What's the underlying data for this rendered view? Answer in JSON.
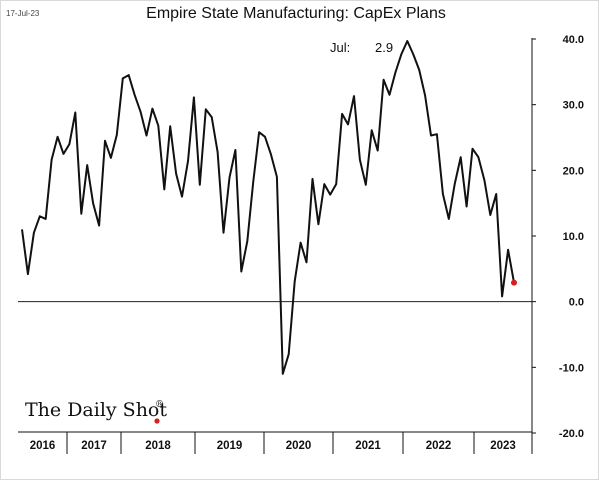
{
  "header": {
    "date": "17-Jul-23",
    "title": "Empire State Manufacturing: CapEx Plans"
  },
  "annotation": {
    "label": "Jul:",
    "value": "2.9"
  },
  "brand": {
    "name": "The Daily Shot",
    "mark": "®"
  },
  "colors": {
    "line": "#111111",
    "last_point": "#d42020",
    "zero_line": "#222222"
  },
  "chart_data": {
    "type": "line",
    "title": "Empire State Manufacturing: CapEx Plans",
    "xlabel": "",
    "ylabel": "",
    "ylim": [
      -20,
      40
    ],
    "y_ticks": [
      -20,
      -10,
      0,
      10,
      20,
      30,
      40
    ],
    "y_tick_labels": [
      "-20.0",
      "-10.0",
      "0.0",
      "10.0",
      "20.0",
      "30.0",
      "40.0"
    ],
    "x_labels": [
      "2016",
      "2017",
      "2018",
      "2019",
      "2020",
      "2021",
      "2022",
      "2023"
    ],
    "axis_side": "right",
    "grid": false,
    "series": [
      {
        "values": [
          11,
          4.2,
          10.5,
          13,
          12.6,
          21.6,
          25.1,
          22.5,
          24,
          28.8,
          13.4,
          20.8,
          15,
          11.6,
          24.5,
          21.9,
          25.4,
          34,
          34.5,
          31.5,
          28.9,
          25.3,
          29.4,
          26.8,
          17.1,
          26.7,
          19.5,
          16,
          21.4,
          31.1,
          17.8,
          29.3,
          28.1,
          22.8,
          10.5,
          18.9,
          23.1,
          4.6,
          9.2,
          18.2,
          25.8,
          25.1,
          22.4,
          19,
          -11,
          -8,
          3.1,
          9,
          6,
          18.7,
          11.8,
          17.9,
          16.3,
          17.9,
          28.6,
          27,
          31.3,
          21.6,
          17.8,
          26.1,
          23,
          33.8,
          31.5,
          34.9,
          37.7,
          39.7,
          37.7,
          35.3,
          31.4,
          25.3,
          25.5,
          16.4,
          12.6,
          17.9,
          22,
          14.5,
          23.3,
          22,
          18.5,
          13.2,
          16.4,
          0.8,
          7.9,
          2.9
        ],
        "last_value": 2.9
      }
    ]
  }
}
